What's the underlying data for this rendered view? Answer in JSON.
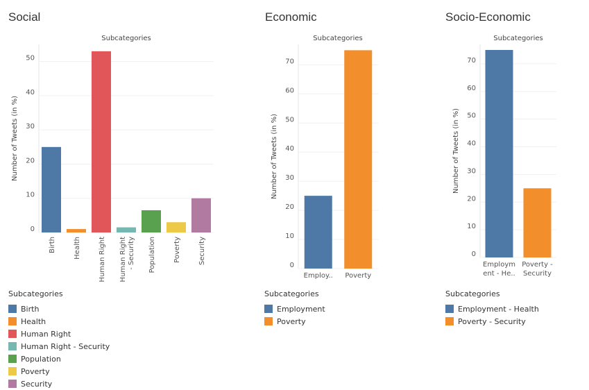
{
  "chart_data": [
    {
      "type": "bar",
      "title": "Social",
      "subtitle": "Subcategories",
      "ylabel": "Number of Tweets (in %)",
      "ylim": [
        0,
        55
      ],
      "yticks": [
        0,
        10,
        20,
        30,
        40,
        50
      ],
      "categories": [
        "Birth",
        "Health",
        "Human Right",
        "Human Right - Security",
        "Population",
        "Poverty",
        "Security"
      ],
      "tick_labels": [
        "Birth",
        "Health",
        "Human Right",
        "Human Right\n- Security",
        "Population",
        "Poverty",
        "Security"
      ],
      "values": [
        25,
        1,
        53,
        1.5,
        6.5,
        3,
        10
      ],
      "colors": [
        "#4e79a7",
        "#f28e2b",
        "#e15759",
        "#76b7b2",
        "#59a14f",
        "#edc948",
        "#b07aa1"
      ],
      "legend_title": "Subcategories",
      "legend": [
        "Birth",
        "Health",
        "Human Right",
        "Human Right - Security",
        "Population",
        "Poverty",
        "Security"
      ]
    },
    {
      "type": "bar",
      "title": "Economic",
      "subtitle": "Subcategories",
      "ylabel": "Number of Tweets (in %)",
      "ylim": [
        0,
        77
      ],
      "yticks": [
        0,
        10,
        20,
        30,
        40,
        50,
        60,
        70
      ],
      "categories": [
        "Employment",
        "Poverty"
      ],
      "tick_labels": [
        "Employ..",
        "Poverty"
      ],
      "values": [
        25,
        75
      ],
      "colors": [
        "#4e79a7",
        "#f28e2b"
      ],
      "legend_title": "Subcategories",
      "legend": [
        "Employment",
        "Poverty"
      ]
    },
    {
      "type": "bar",
      "title": "Socio-Economic",
      "subtitle": "Subcategories",
      "ylabel": "Number of Tweets (in %)",
      "ylim": [
        0,
        77
      ],
      "yticks": [
        0,
        10,
        20,
        30,
        40,
        50,
        60,
        70
      ],
      "categories": [
        "Employment - Health",
        "Poverty - Security"
      ],
      "tick_labels": [
        "Employm\nent - He..",
        "Poverty -\nSecurity"
      ],
      "values": [
        75,
        25
      ],
      "colors": [
        "#4e79a7",
        "#f28e2b"
      ],
      "legend_title": "Subcategories",
      "legend": [
        "Employment - Health",
        "Poverty - Security"
      ]
    }
  ]
}
